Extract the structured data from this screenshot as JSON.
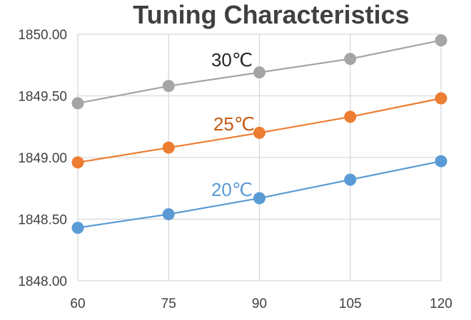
{
  "chart_data": {
    "type": "line",
    "title": "Tuning Characteristics",
    "xlabel": "",
    "ylabel": "",
    "x": [
      60,
      75,
      90,
      105,
      120
    ],
    "x_tick_labels": [
      "60",
      "75",
      "90",
      "105",
      "120"
    ],
    "ylim": [
      1848.0,
      1850.0
    ],
    "y_ticks": [
      1848.0,
      1848.5,
      1849.0,
      1849.5,
      1850.0
    ],
    "y_tick_labels": [
      "1848.00",
      "1848.50",
      "1849.00",
      "1849.50",
      "1850.00"
    ],
    "grid": true,
    "legend": "inline labels",
    "series": [
      {
        "name": "30℃",
        "color": "#a5a5a5",
        "values": [
          1849.44,
          1849.58,
          1849.69,
          1849.8,
          1849.95
        ]
      },
      {
        "name": "25℃",
        "color": "#ed7d31",
        "values": [
          1848.96,
          1849.08,
          1849.2,
          1849.33,
          1849.48
        ]
      },
      {
        "name": "20℃",
        "color": "#5b9bd5",
        "values": [
          1848.43,
          1848.54,
          1848.67,
          1848.82,
          1848.97
        ]
      }
    ]
  }
}
